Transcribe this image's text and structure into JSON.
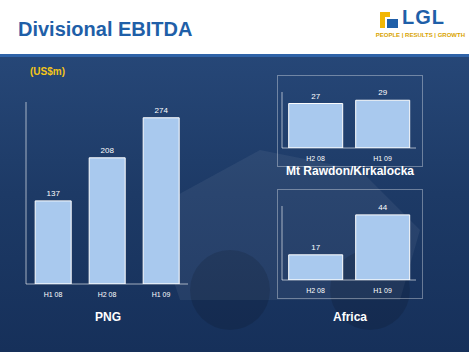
{
  "title": "Divisional EBITDA",
  "logo": {
    "text": "LGL",
    "tagline": "PEOPLE | RESULTS | GROWTH"
  },
  "unit_label": "(US$m)",
  "chart_data": [
    {
      "type": "bar",
      "title": "PNG",
      "categories": [
        "H1 08",
        "H2 08",
        "H1 09"
      ],
      "values": [
        137,
        208,
        274
      ],
      "color": "#a9c9ee",
      "ylim": [
        0,
        300
      ],
      "tick_labels": "x",
      "data_labels": true
    },
    {
      "type": "bar",
      "title": "Mt Rawdon/Kirkalocka",
      "categories": [
        "H2 08",
        "H1 09"
      ],
      "values": [
        27,
        29
      ],
      "color": "#a9c9ee",
      "ylim": [
        0,
        34
      ],
      "tick_labels": "x",
      "data_labels": true
    },
    {
      "type": "bar",
      "title": "Africa",
      "categories": [
        "H2 08",
        "H1 09"
      ],
      "values": [
        17,
        44
      ],
      "color": "#a9c9ee",
      "ylim": [
        0,
        50
      ],
      "tick_labels": "x",
      "data_labels": true
    }
  ]
}
